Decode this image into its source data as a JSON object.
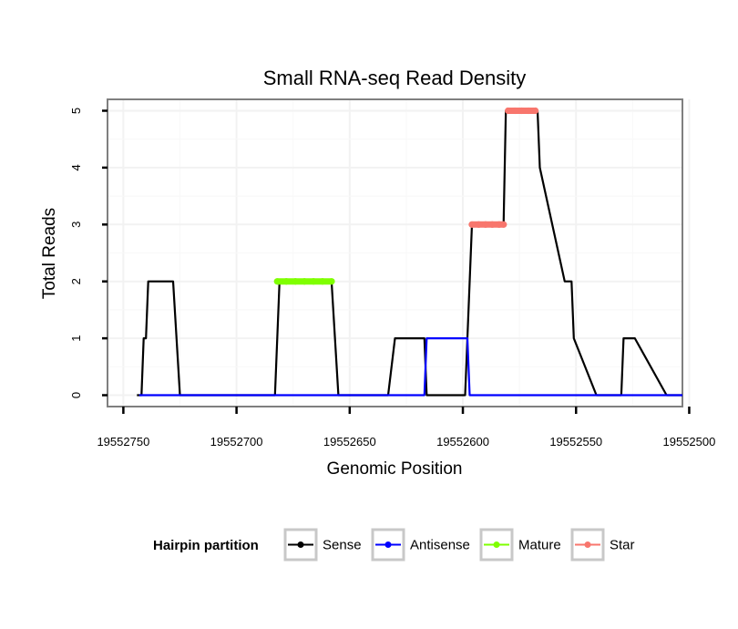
{
  "chart_data": {
    "type": "line",
    "title": "Small RNA-seq Read Density",
    "xlabel": "Genomic Position",
    "ylabel": "Total Reads",
    "x_reversed": true,
    "xlim": [
      19552757,
      19552503
    ],
    "ylim": [
      -0.2,
      5.2
    ],
    "xticks": [
      19552750,
      19552700,
      19552650,
      19552600,
      19552550,
      19552500
    ],
    "yticks": [
      0,
      1,
      2,
      3,
      4,
      5
    ],
    "grid": true,
    "legend": {
      "title": "Hairpin partition",
      "position": "bottom",
      "entries": [
        {
          "label": "Sense",
          "color": "#000000"
        },
        {
          "label": "Antisense",
          "color": "#0000ff"
        },
        {
          "label": "Mature",
          "color": "#7fff00"
        },
        {
          "label": "Star",
          "color": "#f8766d"
        }
      ]
    },
    "series": [
      {
        "name": "Sense",
        "color": "#000000",
        "x": [
          19552744,
          19552742,
          19552741,
          19552740,
          19552739,
          19552738,
          19552737,
          19552728,
          19552725,
          19552720,
          19552700,
          19552683,
          19552681,
          19552658,
          19552655,
          19552650,
          19552633,
          19552630,
          19552617,
          19552616,
          19552599,
          19552596,
          19552582,
          19552581,
          19552567,
          19552566,
          19552555,
          19552552,
          19552551,
          19552541,
          19552530,
          19552529,
          19552528,
          19552527,
          19552524,
          19552510,
          19552503
        ],
        "y": [
          0,
          0,
          1,
          1,
          2,
          2,
          2,
          2,
          0,
          0,
          0,
          0,
          2,
          2,
          0,
          0,
          0,
          1,
          1,
          0,
          0,
          3,
          3,
          5,
          5,
          4,
          2,
          2,
          1,
          0,
          0,
          1,
          1,
          1,
          1,
          0,
          0
        ]
      },
      {
        "name": "Antisense",
        "color": "#0000ff",
        "x": [
          19552743,
          19552725,
          19552700,
          19552650,
          19552617,
          19552616,
          19552598,
          19552597,
          19552503
        ],
        "y": [
          0,
          0,
          0,
          0,
          0,
          1,
          1,
          0,
          0
        ]
      },
      {
        "name": "Mature",
        "color": "#7fff00",
        "x": [
          19552682,
          19552678,
          19552674,
          19552670,
          19552666,
          19552662,
          19552658
        ],
        "y": [
          2,
          2,
          2,
          2,
          2,
          2,
          2
        ]
      },
      {
        "name": "Star",
        "color": "#f8766d",
        "x": [
          19552596,
          19552593,
          19552590,
          19552587,
          19552584,
          19552582,
          19552580,
          19552577,
          19552574,
          19552571,
          19552568
        ],
        "y": [
          3,
          3,
          3,
          3,
          3,
          3,
          5,
          5,
          5,
          5,
          5
        ]
      }
    ]
  }
}
